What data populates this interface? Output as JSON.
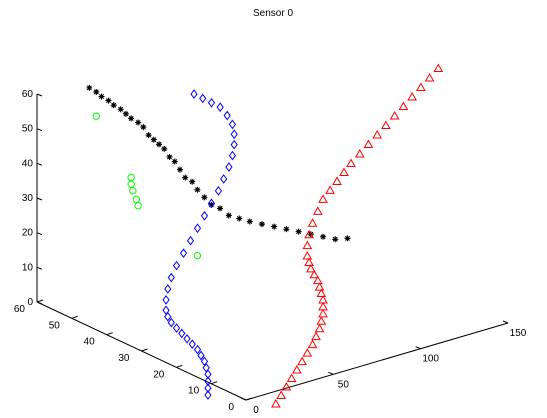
{
  "chart_data": {
    "type": "scatter",
    "projection": "3d",
    "title": "Sensor 0",
    "xlabel": "",
    "ylabel": "",
    "zlabel": "",
    "grid": false,
    "xlim": [
      0,
      150
    ],
    "ylim": [
      0,
      60
    ],
    "zlim": [
      0,
      60
    ],
    "xticks": [
      0,
      50,
      100,
      150
    ],
    "yticks": [
      0,
      10,
      20,
      30,
      40,
      50,
      60
    ],
    "zticks": [
      0,
      10,
      20,
      30,
      40,
      50,
      60
    ],
    "series": [
      {
        "marker": "star",
        "color": "#000000",
        "points": [
          [
            10,
            50,
            65
          ],
          [
            12,
            49,
            64
          ],
          [
            13,
            48,
            63
          ],
          [
            15,
            47,
            62
          ],
          [
            16,
            46,
            61
          ],
          [
            18,
            45,
            60
          ],
          [
            19,
            44,
            59
          ],
          [
            20,
            43,
            58
          ],
          [
            22,
            42,
            57
          ],
          [
            23,
            41,
            56
          ],
          [
            24,
            40,
            54
          ],
          [
            25,
            39,
            53
          ],
          [
            26,
            38,
            52
          ],
          [
            27,
            37,
            51
          ],
          [
            28,
            36,
            49
          ],
          [
            29,
            35,
            48
          ],
          [
            30,
            34,
            46
          ],
          [
            31,
            33,
            44
          ],
          [
            33,
            32,
            43
          ],
          [
            34,
            31,
            41
          ],
          [
            36,
            30,
            39
          ],
          [
            38,
            29,
            37
          ],
          [
            41,
            28,
            36
          ],
          [
            44,
            27,
            34
          ],
          [
            48,
            26,
            33
          ],
          [
            52,
            25,
            32
          ],
          [
            57,
            24,
            31
          ],
          [
            62,
            23,
            30
          ],
          [
            67,
            22,
            29
          ],
          [
            72,
            21,
            28
          ],
          [
            77,
            20,
            27
          ],
          [
            82,
            19,
            26
          ],
          [
            87,
            18,
            25
          ],
          [
            92,
            17,
            25
          ]
        ]
      },
      {
        "marker": "diamond",
        "color": "#0000ff",
        "points": [
          [
            50,
            40,
            62
          ],
          [
            55,
            40,
            60
          ],
          [
            60,
            40,
            58
          ],
          [
            65,
            40,
            56
          ],
          [
            69,
            40,
            53
          ],
          [
            72,
            40,
            50
          ],
          [
            73,
            40,
            47
          ],
          [
            73,
            40,
            44
          ],
          [
            72,
            40,
            41
          ],
          [
            70,
            40,
            38
          ],
          [
            67,
            40,
            35
          ],
          [
            64,
            40,
            32
          ],
          [
            60,
            40,
            29
          ],
          [
            56,
            40,
            26
          ],
          [
            52,
            40,
            23
          ],
          [
            48,
            40,
            20
          ],
          [
            44,
            40,
            17
          ],
          [
            40,
            40,
            14
          ],
          [
            37,
            40,
            11
          ],
          [
            35,
            40,
            8
          ],
          [
            34,
            40,
            5
          ],
          [
            34,
            40,
            2
          ],
          [
            35,
            40,
            0
          ],
          [
            37,
            40,
            -2
          ],
          [
            40,
            40,
            -4
          ],
          [
            43,
            40,
            -6
          ],
          [
            46,
            40,
            -8
          ],
          [
            49,
            40,
            -10
          ],
          [
            52,
            40,
            -12
          ],
          [
            54,
            40,
            -14
          ],
          [
            56,
            40,
            -16
          ],
          [
            57,
            40,
            -18
          ],
          [
            58,
            40,
            -20
          ],
          [
            58,
            40,
            -22
          ],
          [
            58,
            40,
            -24
          ],
          [
            58,
            40,
            -26
          ]
        ]
      },
      {
        "marker": "circle",
        "color": "#00ff00",
        "points": [
          [
            12,
            49,
            57
          ],
          [
            20,
            43,
            41
          ],
          [
            20,
            43,
            39
          ],
          [
            21,
            43,
            37
          ],
          [
            21,
            42,
            35
          ],
          [
            22,
            42,
            33
          ],
          [
            34,
            31,
            22
          ]
        ]
      },
      {
        "marker": "triangle",
        "color": "#ff0000",
        "points": [
          [
            150,
            20,
            64
          ],
          [
            145,
            20,
            62
          ],
          [
            140,
            20,
            60
          ],
          [
            135,
            20,
            58
          ],
          [
            130,
            20,
            56
          ],
          [
            125,
            20,
            54
          ],
          [
            120,
            20,
            52
          ],
          [
            115,
            20,
            50
          ],
          [
            110,
            20,
            48
          ],
          [
            105,
            20,
            46
          ],
          [
            100,
            20,
            44
          ],
          [
            96,
            20,
            42
          ],
          [
            92,
            20,
            40
          ],
          [
            88,
            20,
            38
          ],
          [
            84,
            20,
            36
          ],
          [
            81,
            20,
            33
          ],
          [
            78,
            20,
            30
          ],
          [
            76,
            20,
            27
          ],
          [
            75,
            20,
            24
          ],
          [
            75,
            20,
            21
          ],
          [
            76,
            20,
            19
          ],
          [
            77,
            20,
            17
          ],
          [
            79,
            20,
            15
          ],
          [
            81,
            20,
            13
          ],
          [
            82,
            20,
            11
          ],
          [
            83,
            20,
            9
          ],
          [
            84,
            20,
            7
          ],
          [
            84,
            20,
            5
          ],
          [
            84,
            20,
            3
          ],
          [
            83,
            20,
            1
          ],
          [
            82,
            20,
            -1
          ],
          [
            80,
            20,
            -3
          ],
          [
            78,
            20,
            -5
          ],
          [
            75,
            20,
            -7
          ],
          [
            72,
            20,
            -9
          ],
          [
            69,
            20,
            -11
          ],
          [
            66,
            20,
            -13
          ],
          [
            63,
            20,
            -15
          ],
          [
            60,
            20,
            -17
          ],
          [
            57,
            20,
            -19
          ]
        ]
      }
    ]
  }
}
